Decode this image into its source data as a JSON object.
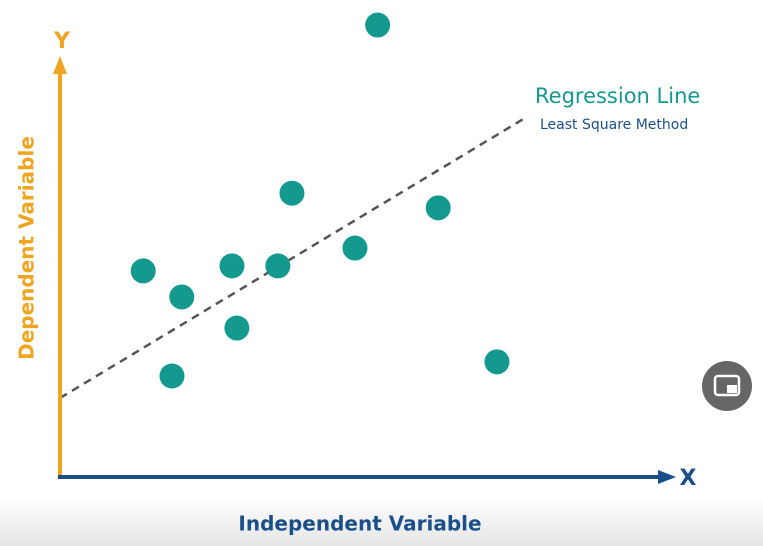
{
  "chart_data": {
    "type": "scatter",
    "x_axis_letter": "X",
    "y_axis_letter": "Y",
    "xlabel": "Independent Variable",
    "ylabel": "Dependent Variable",
    "annotation_title": "Regression Line",
    "annotation_subtitle": "Least Square Method",
    "color": "#14998f",
    "xlim": [
      0,
      100
    ],
    "ylim": [
      0,
      100
    ],
    "x": [
      13.6,
      19.9,
      18.3,
      28.1,
      28.9,
      35.6,
      37.9,
      48.2,
      51.9,
      61.8,
      71.4
    ],
    "y": [
      45.1,
      39.4,
      22.1,
      46.2,
      32.6,
      46.2,
      62.1,
      50.1,
      98.9,
      58.9,
      25.2
    ]
  }
}
